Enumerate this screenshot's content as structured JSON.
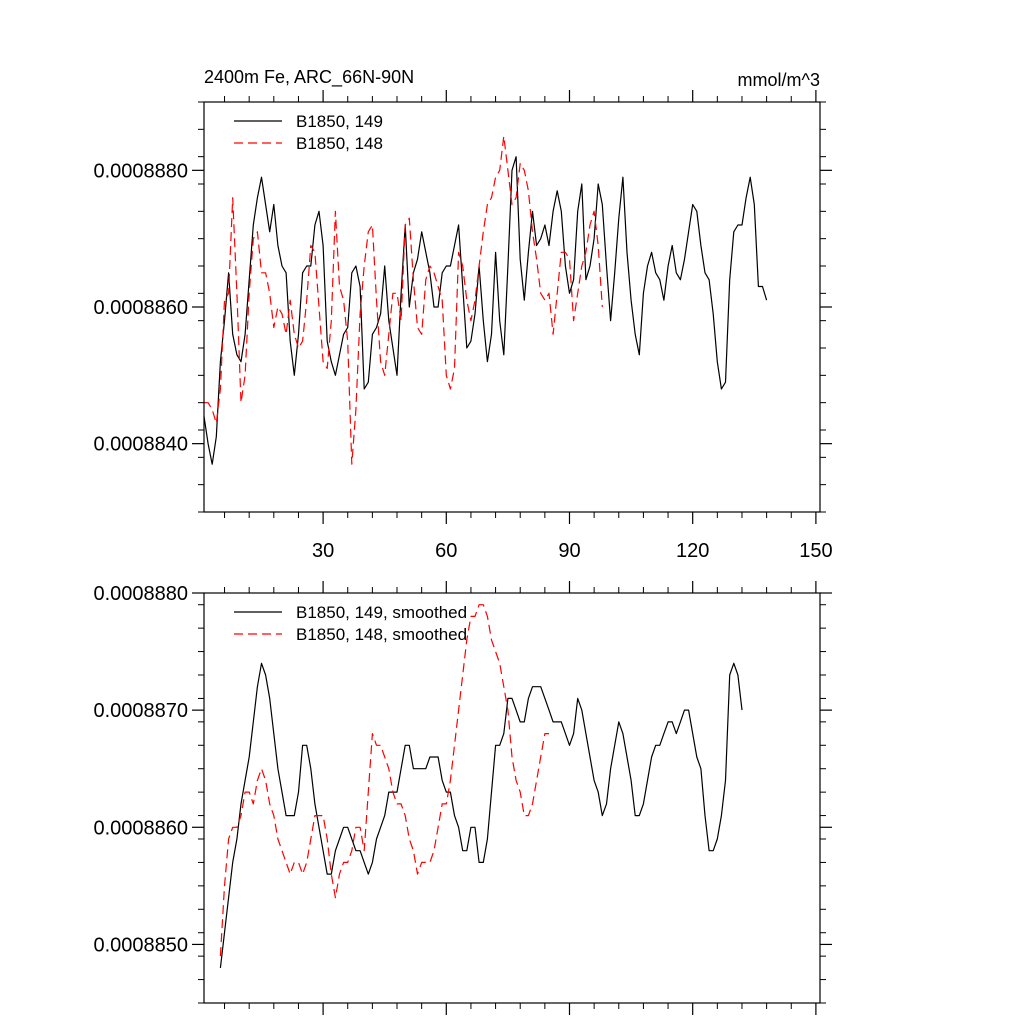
{
  "chart_data": [
    {
      "type": "line",
      "title": "2400m Fe, ARC_66N-90N",
      "units": "mmol/m^3",
      "xlim": [
        1,
        151
      ],
      "ylim": [
        0.000883,
        0.000889
      ],
      "x_ticks": [
        30,
        60,
        90,
        120,
        150
      ],
      "x_tick_labels": [
        "30",
        "60",
        "90",
        "120",
        "150"
      ],
      "y_ticks": [
        0.000884,
        0.000886,
        0.000888
      ],
      "y_tick_labels": [
        "0.0008840",
        "0.0008860",
        "0.0008880"
      ],
      "legend_position": "top-left",
      "series": [
        {
          "name": "B1850, 149",
          "color": "#000000",
          "dash": "solid",
          "x_start": 1,
          "values": [
            0.0008844,
            0.000884,
            0.0008837,
            0.0008841,
            0.0008852,
            0.0008858,
            0.0008865,
            0.0008856,
            0.0008853,
            0.0008852,
            0.0008856,
            0.0008864,
            0.0008872,
            0.0008876,
            0.0008879,
            0.0008875,
            0.0008871,
            0.0008875,
            0.0008869,
            0.0008866,
            0.0008865,
            0.0008855,
            0.000885,
            0.0008856,
            0.0008865,
            0.0008866,
            0.0008866,
            0.0008872,
            0.0008874,
            0.0008869,
            0.0008855,
            0.0008852,
            0.000885,
            0.0008853,
            0.0008856,
            0.0008857,
            0.0008865,
            0.0008866,
            0.0008863,
            0.0008848,
            0.0008849,
            0.0008856,
            0.0008857,
            0.0008859,
            0.0008866,
            0.0008858,
            0.0008854,
            0.000885,
            0.0008862,
            0.0008872,
            0.000886,
            0.0008865,
            0.0008867,
            0.0008871,
            0.0008868,
            0.0008865,
            0.000886,
            0.000886,
            0.0008865,
            0.0008866,
            0.0008866,
            0.0008869,
            0.0008872,
            0.0008863,
            0.0008854,
            0.0008855,
            0.0008859,
            0.0008866,
            0.0008858,
            0.0008852,
            0.0008856,
            0.0008868,
            0.0008858,
            0.0008853,
            0.0008866,
            0.000888,
            0.0008882,
            0.0008867,
            0.0008861,
            0.0008868,
            0.0008874,
            0.0008869,
            0.000887,
            0.0008872,
            0.0008869,
            0.0008874,
            0.0008877,
            0.0008874,
            0.0008866,
            0.0008862,
            0.0008864,
            0.0008874,
            0.0008878,
            0.0008864,
            0.0008866,
            0.000887,
            0.0008878,
            0.0008875,
            0.0008866,
            0.0008858,
            0.0008865,
            0.0008873,
            0.0008879,
            0.0008868,
            0.0008861,
            0.0008856,
            0.0008853,
            0.0008862,
            0.0008866,
            0.0008868,
            0.0008865,
            0.0008864,
            0.0008861,
            0.0008866,
            0.0008869,
            0.0008865,
            0.0008864,
            0.0008867,
            0.0008871,
            0.0008875,
            0.0008874,
            0.0008869,
            0.0008865,
            0.0008864,
            0.0008859,
            0.0008852,
            0.0008848,
            0.0008849,
            0.0008864,
            0.0008871,
            0.0008872,
            0.0008872,
            0.0008876,
            0.0008879,
            0.0008875,
            0.0008863,
            0.0008863,
            0.0008861
          ]
        },
        {
          "name": "B1850, 148",
          "color": "#ff0000",
          "dash": "dashed",
          "x_start": 1,
          "values": [
            0.0008846,
            0.0008846,
            0.0008845,
            0.0008843,
            0.0008848,
            0.0008861,
            0.0008862,
            0.0008876,
            0.0008862,
            0.0008846,
            0.000885,
            0.0008862,
            0.000887,
            0.0008871,
            0.0008865,
            0.0008865,
            0.0008862,
            0.0008857,
            0.000886,
            0.0008859,
            0.0008856,
            0.0008861,
            0.0008856,
            0.0008854,
            0.0008855,
            0.0008861,
            0.0008869,
            0.0008868,
            0.000886,
            0.0008852,
            0.0008851,
            0.0008858,
            0.0008874,
            0.0008863,
            0.0008861,
            0.0008855,
            0.0008837,
            0.0008845,
            0.0008859,
            0.0008866,
            0.0008871,
            0.0008872,
            0.0008861,
            0.0008852,
            0.000885,
            0.0008856,
            0.0008862,
            0.0008862,
            0.0008858,
            0.0008872,
            0.0008873,
            0.0008864,
            0.0008857,
            0.0008856,
            0.0008864,
            0.0008866,
            0.0008865,
            0.0008863,
            0.0008861,
            0.000885,
            0.0008848,
            0.0008851,
            0.0008868,
            0.0008866,
            0.0008861,
            0.0008858,
            0.0008861,
            0.0008866,
            0.0008871,
            0.0008875,
            0.0008876,
            0.0008879,
            0.000888,
            0.0008885,
            0.000888,
            0.0008875,
            0.0008876,
            0.0008881,
            0.000888,
            0.0008877,
            0.0008871,
            0.0008867,
            0.0008862,
            0.0008861,
            0.0008862,
            0.0008856,
            0.0008862,
            0.0008868,
            0.0008868,
            0.0008867,
            0.0008858,
            0.0008862,
            0.0008866,
            0.0008868,
            0.0008872,
            0.0008874,
            0.0008869,
            0.000886
          ]
        }
      ]
    },
    {
      "type": "line",
      "title": "",
      "xlim": [
        1,
        151
      ],
      "ylim": [
        0.0008845,
        0.000888
      ],
      "x_ticks": [
        30,
        60,
        90,
        120,
        150
      ],
      "y_ticks": [
        0.000885,
        0.000886,
        0.000887,
        0.000888
      ],
      "y_tick_labels": [
        "0.0008850",
        "0.0008860",
        "0.0008870",
        "0.0008880"
      ],
      "legend_position": "top-left",
      "series": [
        {
          "name": "B1850, 149, smoothed",
          "color": "#000000",
          "dash": "solid",
          "x_start": 5,
          "values": [
            0.0008848,
            0.0008851,
            0.0008854,
            0.0008857,
            0.0008859,
            0.0008862,
            0.0008864,
            0.0008866,
            0.0008869,
            0.0008872,
            0.0008874,
            0.0008873,
            0.0008871,
            0.0008868,
            0.0008865,
            0.0008863,
            0.0008861,
            0.0008861,
            0.0008861,
            0.0008863,
            0.0008867,
            0.0008867,
            0.0008865,
            0.0008862,
            0.000886,
            0.0008858,
            0.0008856,
            0.0008856,
            0.0008858,
            0.0008859,
            0.000886,
            0.000886,
            0.0008859,
            0.0008858,
            0.0008858,
            0.0008857,
            0.0008856,
            0.0008857,
            0.0008859,
            0.000886,
            0.0008861,
            0.0008863,
            0.0008863,
            0.0008863,
            0.0008865,
            0.0008867,
            0.0008867,
            0.0008865,
            0.0008865,
            0.0008865,
            0.0008865,
            0.0008866,
            0.0008866,
            0.0008866,
            0.0008864,
            0.0008863,
            0.0008863,
            0.0008861,
            0.000886,
            0.0008858,
            0.0008858,
            0.000886,
            0.000886,
            0.0008857,
            0.0008857,
            0.0008859,
            0.0008863,
            0.0008867,
            0.0008867,
            0.0008868,
            0.0008871,
            0.0008871,
            0.000887,
            0.0008869,
            0.0008869,
            0.0008871,
            0.0008872,
            0.0008872,
            0.0008872,
            0.0008871,
            0.000887,
            0.0008869,
            0.0008869,
            0.0008869,
            0.0008868,
            0.0008867,
            0.0008868,
            0.0008871,
            0.000887,
            0.0008868,
            0.0008866,
            0.0008864,
            0.0008863,
            0.0008861,
            0.0008862,
            0.0008865,
            0.0008867,
            0.0008869,
            0.0008868,
            0.0008866,
            0.0008864,
            0.0008861,
            0.0008861,
            0.0008862,
            0.0008864,
            0.0008866,
            0.0008867,
            0.0008867,
            0.0008868,
            0.0008869,
            0.0008869,
            0.0008868,
            0.0008869,
            0.000887,
            0.000887,
            0.0008868,
            0.0008866,
            0.0008865,
            0.0008861,
            0.0008858,
            0.0008858,
            0.0008859,
            0.0008861,
            0.0008864,
            0.0008873,
            0.0008874,
            0.0008873,
            0.000887
          ]
        },
        {
          "name": "B1850, 148, smoothed",
          "color": "#ff0000",
          "dash": "dashed",
          "x_start": 5,
          "values": [
            0.0008849,
            0.0008855,
            0.0008859,
            0.000886,
            0.000886,
            0.0008861,
            0.0008863,
            0.0008863,
            0.0008862,
            0.0008864,
            0.0008865,
            0.0008864,
            0.0008862,
            0.0008861,
            0.0008859,
            0.0008858,
            0.0008857,
            0.0008856,
            0.0008857,
            0.0008857,
            0.0008856,
            0.0008857,
            0.0008859,
            0.0008861,
            0.0008861,
            0.0008861,
            0.0008859,
            0.0008856,
            0.0008854,
            0.0008856,
            0.0008857,
            0.0008857,
            0.0008858,
            0.000886,
            0.000886,
            0.0008858,
            0.0008863,
            0.0008868,
            0.0008867,
            0.0008867,
            0.0008866,
            0.0008865,
            0.0008863,
            0.0008862,
            0.0008862,
            0.0008861,
            0.0008859,
            0.0008858,
            0.0008856,
            0.0008857,
            0.0008857,
            0.0008857,
            0.0008858,
            0.000886,
            0.0008862,
            0.0008862,
            0.0008864,
            0.0008867,
            0.000887,
            0.0008873,
            0.0008876,
            0.0008878,
            0.0008878,
            0.0008879,
            0.0008879,
            0.0008878,
            0.0008876,
            0.0008875,
            0.0008874,
            0.0008872,
            0.000887,
            0.0008866,
            0.0008864,
            0.0008863,
            0.0008861,
            0.0008861,
            0.0008862,
            0.0008864,
            0.0008866,
            0.0008868,
            0.0008868
          ]
        }
      ]
    }
  ]
}
